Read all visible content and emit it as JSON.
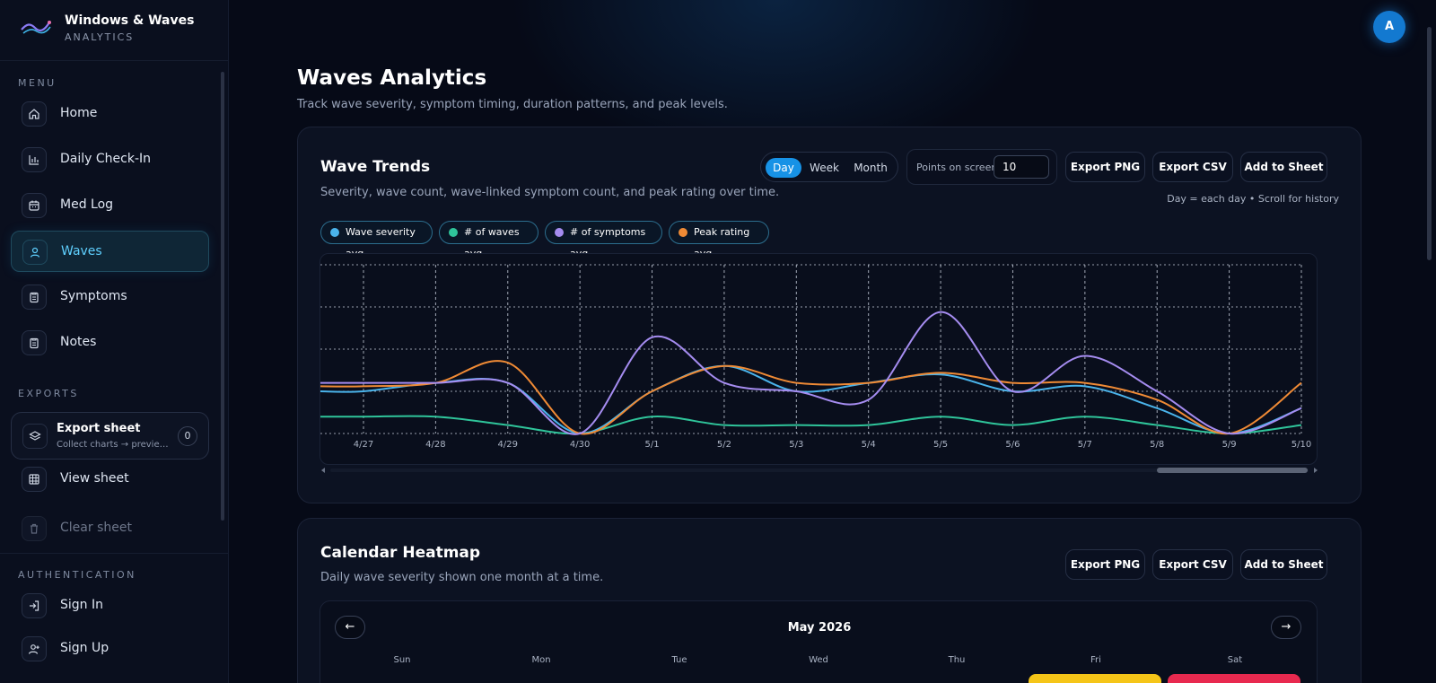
{
  "brand": {
    "name": "Windows & Waves",
    "tagline": "ANALYTICS"
  },
  "sidebar": {
    "menu_label": "MENU",
    "menu": [
      {
        "label": "Home",
        "icon": "home-icon"
      },
      {
        "label": "Daily Check-In",
        "icon": "bar-chart-icon"
      },
      {
        "label": "Med Log",
        "icon": "calendar-icon"
      },
      {
        "label": "Waves",
        "icon": "user-icon",
        "active": true
      },
      {
        "label": "Symptoms",
        "icon": "clipboard-icon"
      },
      {
        "label": "Notes",
        "icon": "clipboard-icon"
      }
    ],
    "exports_label": "EXPORTS",
    "export_sheet": {
      "title": "Export sheet",
      "subtitle": "Collect charts → preview and download",
      "count": "0"
    },
    "view_sheet": "View sheet",
    "clear_sheet": "Clear sheet",
    "auth_label": "AUTHENTICATION",
    "sign_in": "Sign In",
    "sign_up": "Sign Up"
  },
  "user": {
    "initial": "A"
  },
  "page": {
    "title": "Waves Analytics",
    "subtitle": "Track wave severity, symptom timing, duration patterns, and peak levels."
  },
  "trends": {
    "title": "Wave Trends",
    "subtitle": "Severity, wave count, wave-linked symptom count, and peak rating over time.",
    "tabs": [
      "Day",
      "Week",
      "Month"
    ],
    "active_tab": "Day",
    "points_label": "Points on screen",
    "points_value": "10",
    "export_png": "Export PNG",
    "export_csv": "Export CSV",
    "add_to_sheet": "Add to Sheet",
    "hint": "Day = each day • Scroll for history",
    "colors": {
      "severity": "#4ab3ea",
      "waves": "#2fc49a",
      "symptoms": "#a58cf0",
      "peak": "#ef8a35"
    }
  },
  "chart_data": {
    "type": "line",
    "x": [
      "4/27",
      "4/28",
      "4/29",
      "4/30",
      "5/1",
      "5/2",
      "5/3",
      "5/4",
      "5/5",
      "5/6",
      "5/7",
      "5/8",
      "5/9",
      "5/10"
    ],
    "series": [
      {
        "name": "Wave severity avg",
        "values": [
          2.5,
          3,
          3,
          0,
          2.5,
          4,
          2.5,
          3,
          3.5,
          2.5,
          2.8,
          1.5,
          0,
          1.5
        ]
      },
      {
        "name": "# of waves avg",
        "values": [
          1,
          1,
          0.5,
          0,
          1,
          0.5,
          0.5,
          0.5,
          1,
          0.5,
          1,
          0.5,
          0,
          0.5
        ]
      },
      {
        "name": "# of symptoms avg",
        "values": [
          3,
          3,
          3,
          0,
          5.7,
          3,
          2.5,
          2,
          7.2,
          2.5,
          4.6,
          2.5,
          0,
          1.5
        ]
      },
      {
        "name": "Peak rating avg",
        "values": [
          2.8,
          3,
          4.2,
          0,
          2.5,
          4,
          3,
          3,
          3.6,
          3,
          3,
          2,
          0,
          3
        ]
      }
    ],
    "xlabel": "",
    "ylabel": "",
    "ylim": [
      0,
      10
    ],
    "grid": true
  },
  "heatmap": {
    "title": "Calendar Heatmap",
    "subtitle": "Daily wave severity shown one month at a time.",
    "export_png": "Export PNG",
    "export_csv": "Export CSV",
    "add_to_sheet": "Add to Sheet",
    "month": "May 2026",
    "prev": "←",
    "next": "→",
    "days": [
      "Sun",
      "Mon",
      "Tue",
      "Wed",
      "Thu",
      "Fri",
      "Sat"
    ],
    "first_row_colors": {
      "fri": "#f5c518",
      "sat": "#e8294f"
    }
  }
}
